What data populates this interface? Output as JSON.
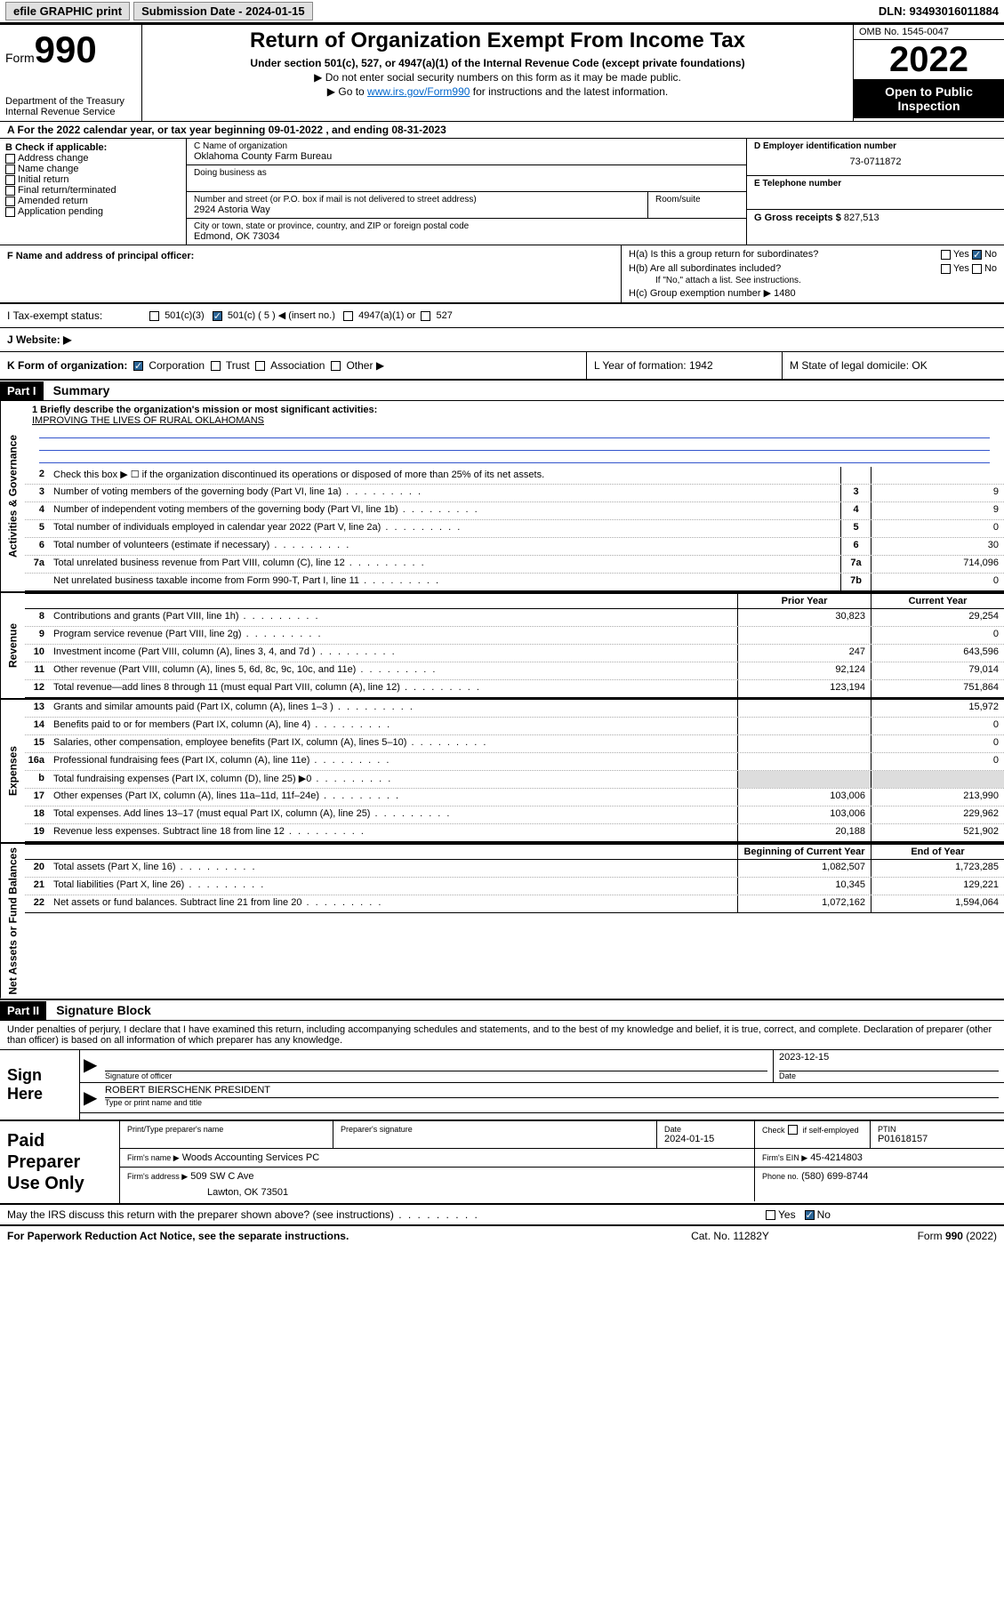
{
  "topbar": {
    "efile_label": "efile GRAPHIC print",
    "submission_label": "Submission Date - 2024-01-15",
    "dln": "DLN: 93493016011884"
  },
  "header": {
    "form_prefix": "Form",
    "form_number": "990",
    "dept": "Department of the Treasury",
    "irs": "Internal Revenue Service",
    "title": "Return of Organization Exempt From Income Tax",
    "sub1": "Under section 501(c), 527, or 4947(a)(1) of the Internal Revenue Code (except private foundations)",
    "sub2": "▶ Do not enter social security numbers on this form as it may be made public.",
    "sub3_pre": "▶ Go to ",
    "sub3_link": "www.irs.gov/Form990",
    "sub3_post": " for instructions and the latest information.",
    "omb": "OMB No. 1545-0047",
    "year": "2022",
    "open_public": "Open to Public Inspection"
  },
  "rowA": "A For the 2022 calendar year, or tax year beginning 09-01-2022   , and ending 08-31-2023",
  "blockB": {
    "label": "B Check if applicable:",
    "opts": [
      "Address change",
      "Name change",
      "Initial return",
      "Final return/terminated",
      "Amended return",
      "Application pending"
    ]
  },
  "blockC": {
    "name_label": "C Name of organization",
    "name": "Oklahoma County Farm Bureau",
    "dba_label": "Doing business as",
    "addr_label": "Number and street (or P.O. box if mail is not delivered to street address)",
    "room_label": "Room/suite",
    "addr": "2924 Astoria Way",
    "city_label": "City or town, state or province, country, and ZIP or foreign postal code",
    "city": "Edmond, OK  73034"
  },
  "blockD": {
    "label": "D Employer identification number",
    "value": "73-0711872"
  },
  "blockE": {
    "label": "E Telephone number",
    "value": ""
  },
  "blockG": {
    "label": "G Gross receipts $",
    "value": "827,513"
  },
  "blockF": {
    "label": "F Name and address of principal officer:",
    "value": ""
  },
  "blockH": {
    "ha_label": "H(a)  Is this a group return for subordinates?",
    "hb_label": "H(b)  Are all subordinates included?",
    "hb_note": "If \"No,\" attach a list. See instructions.",
    "hc_label": "H(c)  Group exemption number ▶",
    "hc_value": "1480",
    "yes": "Yes",
    "no": "No"
  },
  "rowI": {
    "label": "I     Tax-exempt status:",
    "c3": "501(c)(3)",
    "c5": "501(c) ( 5 ) ◀ (insert no.)",
    "a1": "4947(a)(1) or",
    "s527": "527"
  },
  "rowJ": {
    "label": "J    Website: ▶",
    "value": ""
  },
  "rowK": {
    "label": "K Form of organization:",
    "corp": "Corporation",
    "trust": "Trust",
    "assoc": "Association",
    "other": "Other ▶",
    "L": "L Year of formation: 1942",
    "M": "M State of legal domicile: OK"
  },
  "partI": {
    "label": "Part I",
    "title": "Summary"
  },
  "mission": {
    "line1_label": "1   Briefly describe the organization's mission or most significant activities:",
    "text": "IMPROVING THE LIVES OF RURAL OKLAHOMANS"
  },
  "summary_sections": [
    {
      "tab": "Activities & Governance",
      "has_amounts": false,
      "lines": [
        {
          "n": "2",
          "t": "Check this box ▶ ☐  if the organization discontinued its operations or disposed of more than 25% of its net assets.",
          "box": "",
          "amt1": "",
          "amt2": ""
        },
        {
          "n": "3",
          "t": "Number of voting members of the governing body (Part VI, line 1a)",
          "box": "3",
          "amt2": "9"
        },
        {
          "n": "4",
          "t": "Number of independent voting members of the governing body (Part VI, line 1b)",
          "box": "4",
          "amt2": "9"
        },
        {
          "n": "5",
          "t": "Total number of individuals employed in calendar year 2022 (Part V, line 2a)",
          "box": "5",
          "amt2": "0"
        },
        {
          "n": "6",
          "t": "Total number of volunteers (estimate if necessary)",
          "box": "6",
          "amt2": "30"
        },
        {
          "n": "7a",
          "t": "Total unrelated business revenue from Part VIII, column (C), line 12",
          "box": "7a",
          "amt2": "714,096"
        },
        {
          "n": "",
          "t": "Net unrelated business taxable income from Form 990-T, Part I, line 11",
          "box": "7b",
          "amt2": "0"
        }
      ]
    },
    {
      "tab": "Revenue",
      "has_amounts": true,
      "hdr1": "Prior Year",
      "hdr2": "Current Year",
      "lines": [
        {
          "n": "8",
          "t": "Contributions and grants (Part VIII, line 1h)",
          "amt1": "30,823",
          "amt2": "29,254"
        },
        {
          "n": "9",
          "t": "Program service revenue (Part VIII, line 2g)",
          "amt1": "",
          "amt2": "0"
        },
        {
          "n": "10",
          "t": "Investment income (Part VIII, column (A), lines 3, 4, and 7d )",
          "amt1": "247",
          "amt2": "643,596"
        },
        {
          "n": "11",
          "t": "Other revenue (Part VIII, column (A), lines 5, 6d, 8c, 9c, 10c, and 11e)",
          "amt1": "92,124",
          "amt2": "79,014"
        },
        {
          "n": "12",
          "t": "Total revenue—add lines 8 through 11 (must equal Part VIII, column (A), line 12)",
          "amt1": "123,194",
          "amt2": "751,864"
        }
      ]
    },
    {
      "tab": "Expenses",
      "has_amounts": true,
      "lines": [
        {
          "n": "13",
          "t": "Grants and similar amounts paid (Part IX, column (A), lines 1–3 )",
          "amt1": "",
          "amt2": "15,972"
        },
        {
          "n": "14",
          "t": "Benefits paid to or for members (Part IX, column (A), line 4)",
          "amt1": "",
          "amt2": "0"
        },
        {
          "n": "15",
          "t": "Salaries, other compensation, employee benefits (Part IX, column (A), lines 5–10)",
          "amt1": "",
          "amt2": "0"
        },
        {
          "n": "16a",
          "t": "Professional fundraising fees (Part IX, column (A), line 11e)",
          "amt1": "",
          "amt2": "0"
        },
        {
          "n": "b",
          "t": "Total fundraising expenses (Part IX, column (D), line 25) ▶0",
          "amt1": "shade",
          "amt2": "shade"
        },
        {
          "n": "17",
          "t": "Other expenses (Part IX, column (A), lines 11a–11d, 11f–24e)",
          "amt1": "103,006",
          "amt2": "213,990"
        },
        {
          "n": "18",
          "t": "Total expenses. Add lines 13–17 (must equal Part IX, column (A), line 25)",
          "amt1": "103,006",
          "amt2": "229,962"
        },
        {
          "n": "19",
          "t": "Revenue less expenses. Subtract line 18 from line 12",
          "amt1": "20,188",
          "amt2": "521,902"
        }
      ]
    },
    {
      "tab": "Net Assets or Fund Balances",
      "has_amounts": true,
      "hdr1": "Beginning of Current Year",
      "hdr2": "End of Year",
      "lines": [
        {
          "n": "20",
          "t": "Total assets (Part X, line 16)",
          "amt1": "1,082,507",
          "amt2": "1,723,285"
        },
        {
          "n": "21",
          "t": "Total liabilities (Part X, line 26)",
          "amt1": "10,345",
          "amt2": "129,221"
        },
        {
          "n": "22",
          "t": "Net assets or fund balances. Subtract line 21 from line 20",
          "amt1": "1,072,162",
          "amt2": "1,594,064"
        }
      ]
    }
  ],
  "partII": {
    "label": "Part II",
    "title": "Signature Block"
  },
  "penalties": "Under penalties of perjury, I declare that I have examined this return, including accompanying schedules and statements, and to the best of my knowledge and belief, it is true, correct, and complete. Declaration of preparer (other than officer) is based on all information of which preparer has any knowledge.",
  "sign": {
    "here": "Sign Here",
    "sig_label": "Signature of officer",
    "date_label": "Date",
    "date": "2023-12-15",
    "name": "ROBERT BIERSCHENK  PRESIDENT",
    "name_label": "Type or print name and title"
  },
  "prep": {
    "title": "Paid Preparer Use Only",
    "h1": "Print/Type preparer's name",
    "h2": "Preparer's signature",
    "h3": "Date",
    "date": "2024-01-15",
    "h4_pre": "Check",
    "h4_post": "if self-employed",
    "h5": "PTIN",
    "ptin": "P01618157",
    "firm_name_label": "Firm's name    ▶",
    "firm_name": "Woods Accounting Services PC",
    "firm_ein_label": "Firm's EIN ▶",
    "firm_ein": "45-4214803",
    "firm_addr_label": "Firm's address ▶",
    "firm_addr1": "509 SW C Ave",
    "firm_addr2": "Lawton, OK  73501",
    "phone_label": "Phone no.",
    "phone": "(580) 699-8744"
  },
  "discuss": {
    "text": "May the IRS discuss this return with the preparer shown above? (see instructions)",
    "yes": "Yes",
    "no": "No"
  },
  "footer": {
    "left": "For Paperwork Reduction Act Notice, see the separate instructions.",
    "mid": "Cat. No. 11282Y",
    "right_pre": "Form ",
    "right_form": "990",
    "right_post": " (2022)"
  },
  "colors": {
    "link": "#0066cc",
    "checked": "#2a6496",
    "shade": "#dddddd",
    "mission_rule": "#3355cc"
  }
}
